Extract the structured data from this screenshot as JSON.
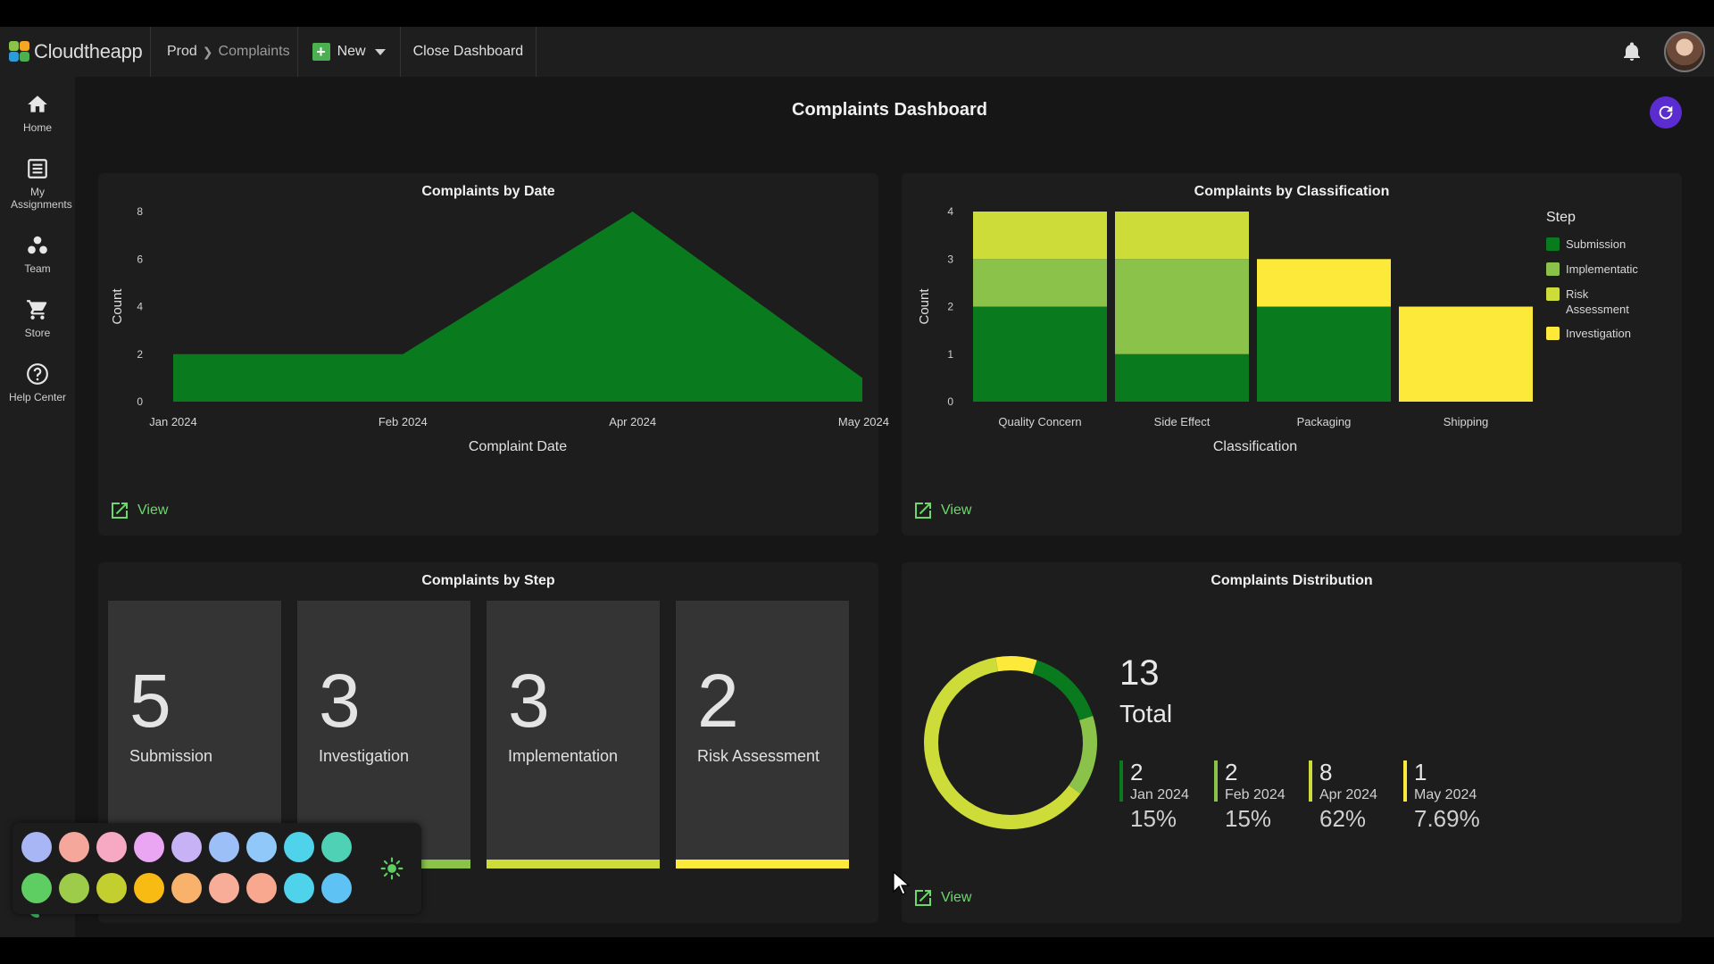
{
  "header": {
    "app_name": "Cloudtheapp",
    "breadcrumb": [
      "Prod",
      "Complaints"
    ],
    "new_label": "New",
    "close_dashboard_label": "Close Dashboard"
  },
  "sidebar": {
    "items": [
      {
        "label": "Home",
        "icon": "home-icon"
      },
      {
        "label": "My Assignments",
        "icon": "list-icon"
      },
      {
        "label": "Team",
        "icon": "team-icon"
      },
      {
        "label": "Store",
        "icon": "cart-icon"
      },
      {
        "label": "Help Center",
        "icon": "help-icon"
      }
    ]
  },
  "dashboard": {
    "title": "Complaints Dashboard",
    "view_label": "View"
  },
  "colors": {
    "green_dark": "#0a7a1e",
    "green_light": "#8bc34a",
    "lime": "#cddc39",
    "yellow": "#fde93a",
    "accent_purple": "#5b2ccf",
    "link_green": "#6dd86d"
  },
  "chart_data": [
    {
      "type": "area",
      "title": "Complaints by Date",
      "xlabel": "Complaint Date",
      "ylabel": "Count",
      "x": [
        "Jan 2024",
        "Feb 2024",
        "Apr 2024",
        "May 2024"
      ],
      "y": [
        2,
        2,
        8,
        1
      ],
      "yticks": [
        0,
        2,
        4,
        6,
        8
      ],
      "ylim": [
        0,
        8
      ],
      "color": "#0a7a1e"
    },
    {
      "type": "bar",
      "stacked": true,
      "title": "Complaints by Classification",
      "xlabel": "Classification",
      "ylabel": "Count",
      "categories": [
        "Quality Concern",
        "Side Effect",
        "Packaging",
        "Shipping"
      ],
      "yticks": [
        0,
        1,
        2,
        3,
        4
      ],
      "ylim": [
        0,
        4
      ],
      "legend_title": "Step",
      "legend_position": "right",
      "series": [
        {
          "name": "Submission",
          "color": "#0a7a1e",
          "values": [
            2,
            1,
            2,
            0
          ]
        },
        {
          "name": "Implementation",
          "display_name": "Implementatic",
          "color": "#8bc34a",
          "values": [
            1,
            2,
            0,
            0
          ]
        },
        {
          "name": "Risk Assessment",
          "display_name": [
            "Risk",
            "Assessment"
          ],
          "color": "#cddc39",
          "values": [
            1,
            1,
            0,
            0
          ]
        },
        {
          "name": "Investigation",
          "color": "#fde93a",
          "values": [
            0,
            0,
            1,
            2
          ]
        }
      ]
    },
    {
      "type": "pie",
      "donut": true,
      "title": "Complaints Distribution",
      "total": "13",
      "total_label": "Total",
      "slices": [
        {
          "label": "Jan 2024",
          "count": "2",
          "percent": "15%",
          "fraction": 0.15,
          "color": "#0a7a1e"
        },
        {
          "label": "Feb 2024",
          "count": "2",
          "percent": "15%",
          "fraction": 0.15,
          "color": "#8bc34a"
        },
        {
          "label": "Apr 2024",
          "count": "8",
          "percent": "62%",
          "fraction": 0.62,
          "color": "#cddc39"
        },
        {
          "label": "May 2024",
          "count": "1",
          "percent": "7.69%",
          "fraction": 0.0769,
          "color": "#fde93a"
        }
      ]
    }
  ],
  "steps": {
    "title": "Complaints by Step",
    "tiles": [
      {
        "count": "5",
        "label": "Submission",
        "color": "#0a7a1e"
      },
      {
        "count": "3",
        "label": "Investigation",
        "color": "#8bc34a"
      },
      {
        "count": "3",
        "label": "Implementation",
        "color": "#cddc39"
      },
      {
        "count": "2",
        "label": "Risk Assessment",
        "color": "#fde93a"
      }
    ]
  },
  "palette": {
    "row1": [
      "#a9b6f5",
      "#f6a79c",
      "#f7a8c3",
      "#eba6f3",
      "#c7b2f5",
      "#9cbff7",
      "#90c9f9",
      "#4fd3ea",
      "#4fd1b6"
    ],
    "row2": [
      "#5fce62",
      "#9ccc4a",
      "#c3cf2e",
      "#f7bb14",
      "#f9b26b",
      "#f7ad98",
      "#f7a88f",
      "#4fd3ea",
      "#5ec2f5"
    ],
    "theme_icon": "sun-icon"
  }
}
